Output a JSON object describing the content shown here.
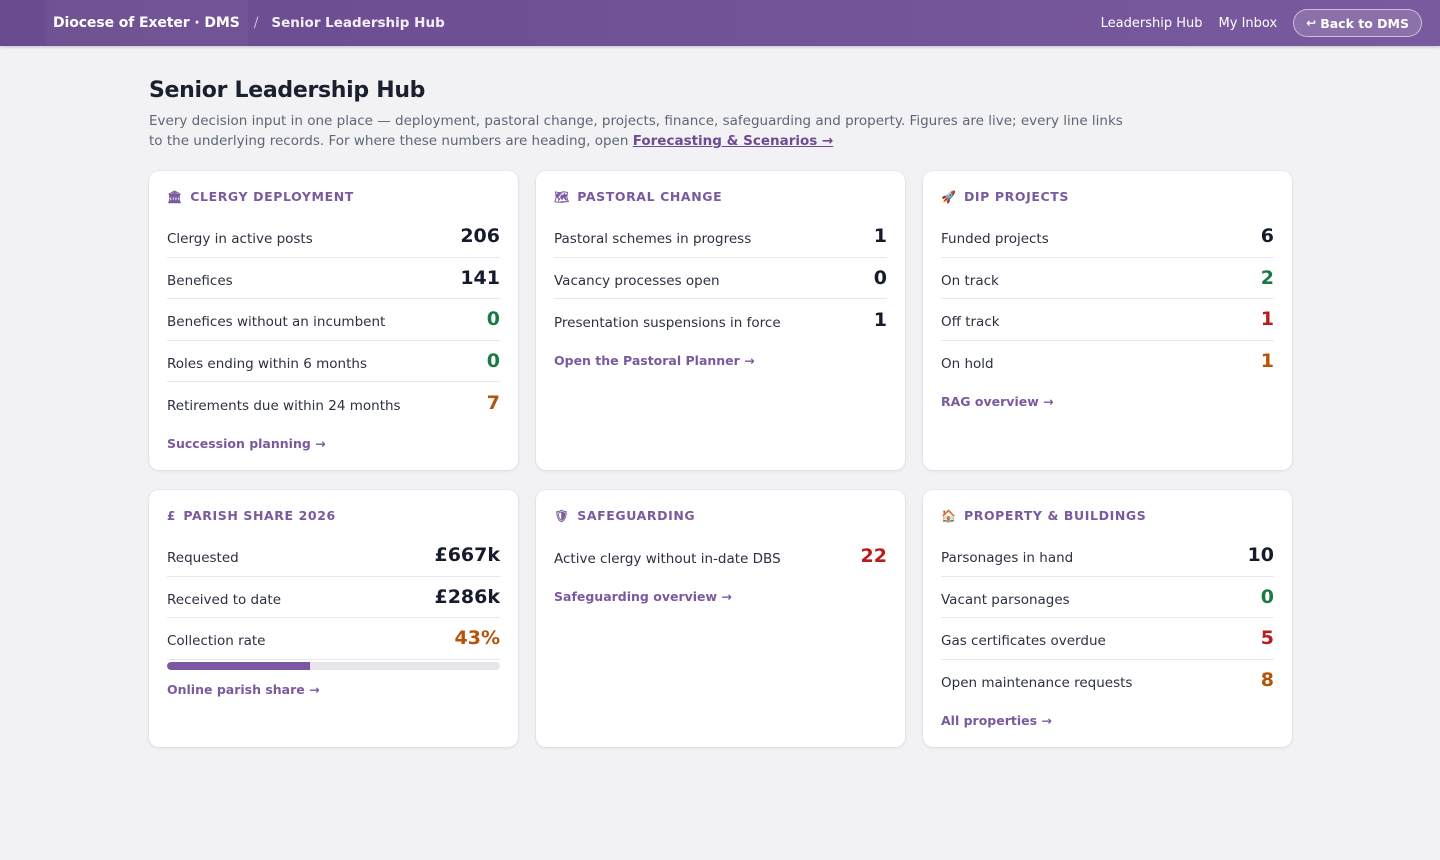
{
  "header": {
    "brand": "Diocese of Exeter · DMS",
    "separator": "/",
    "current": "Senior Leadership Hub",
    "nav": [
      "Leadership Hub",
      "My Inbox"
    ],
    "back_icon": "↩",
    "back_label": "Back to DMS"
  },
  "page": {
    "title": "Senior Leadership Hub",
    "intro": "Every decision input in one place — deployment, pastoral change, projects, finance, safeguarding and property. Figures are live; every line links to the underlying records. For where these numbers are heading, open ",
    "intro_link": "Forecasting & Scenarios →"
  },
  "cards": {
    "clergy": {
      "icon": "🏛",
      "title": "CLERGY DEPLOYMENT",
      "stats": [
        {
          "label": "Clergy in active posts",
          "value": "206"
        },
        {
          "label": "Benefices",
          "value": "141"
        },
        {
          "label": "Benefices without an incumbent",
          "value": "0"
        },
        {
          "label": "Roles ending within 6 months",
          "value": "0"
        },
        {
          "label": "Retirements due within 24 months",
          "value": "7"
        }
      ],
      "link": "Succession planning →"
    },
    "pastoral": {
      "icon": "🗺",
      "title": "PASTORAL CHANGE",
      "stats": [
        {
          "label": "Pastoral schemes in progress",
          "value": "1"
        },
        {
          "label": "Vacancy processes open",
          "value": "0"
        },
        {
          "label": "Presentation suspensions in force",
          "value": "1"
        }
      ],
      "link": "Open the Pastoral Planner →"
    },
    "dip": {
      "icon": "🚀",
      "title": "DIP PROJECTS",
      "stats": [
        {
          "label": "Funded projects",
          "value": "6"
        },
        {
          "label": "On track",
          "value": "2"
        },
        {
          "label": "Off track",
          "value": "1"
        },
        {
          "label": "On hold",
          "value": "1"
        }
      ],
      "link": "RAG overview →"
    },
    "parish": {
      "icon": "£",
      "title": "PARISH SHARE 2026",
      "stats": [
        {
          "label": "Requested",
          "value": "£667k"
        },
        {
          "label": "Received to date",
          "value": "£286k"
        },
        {
          "label": "Collection rate",
          "value": "43%"
        }
      ],
      "collection_fraction": 0.43,
      "link": "Online parish share →"
    },
    "safeguarding": {
      "icon": "🛡",
      "title": "SAFEGUARDING",
      "stats": [
        {
          "label": "Active clergy without in-date DBS",
          "value": "22"
        }
      ],
      "link": "Safeguarding overview →"
    },
    "property": {
      "icon": "🏠",
      "title": "PROPERTY & BUILDINGS",
      "stats": [
        {
          "label": "Parsonages in hand",
          "value": "10"
        },
        {
          "label": "Vacant parsonages",
          "value": "0"
        },
        {
          "label": "Gas certificates overdue",
          "value": "5"
        },
        {
          "label": "Open maintenance requests",
          "value": "8"
        }
      ],
      "link": "All properties →"
    }
  },
  "colors": {
    "accent": "#7a5a9e",
    "good": "#1a7a43",
    "bad": "#b91c1c",
    "warn": "#b45309",
    "neutral": "#151b2c"
  }
}
